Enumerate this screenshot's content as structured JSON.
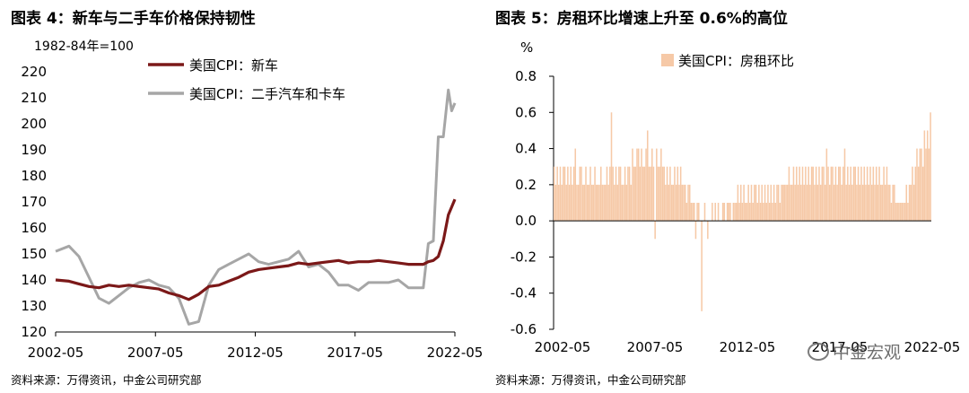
{
  "left": {
    "title": "图表 4：新车与二手车价格保持韧性",
    "source": "资料来源：万得资讯，中金公司研究部"
  },
  "right": {
    "title": "图表 5：房租环比增速上升至 0.6%的高位",
    "source": "资料来源：万得资讯，中金公司研究部"
  },
  "watermark": "中金宏观",
  "chart_data": [
    {
      "type": "line",
      "unit_label": "1982-84年=100",
      "xlabel": "",
      "ylabel": "",
      "x_ticks": [
        "2002-05",
        "2007-05",
        "2012-05",
        "2017-05",
        "2022-05"
      ],
      "ylim": [
        120,
        220
      ],
      "y_ticks": [
        120,
        130,
        140,
        150,
        160,
        170,
        180,
        190,
        200,
        210,
        220
      ],
      "legend_position": "top-center",
      "colors": {
        "new": "#7B1818",
        "used": "#A6A6A6"
      },
      "x": [
        2002.33,
        2003,
        2003.5,
        2004,
        2004.5,
        2005,
        2005.5,
        2006,
        2006.5,
        2007,
        2007.5,
        2008,
        2008.5,
        2009,
        2009.5,
        2010,
        2010.5,
        2011,
        2011.5,
        2012,
        2012.5,
        2013,
        2013.5,
        2014,
        2014.5,
        2015,
        2015.5,
        2016,
        2016.5,
        2017,
        2017.5,
        2018,
        2018.5,
        2019,
        2019.5,
        2020,
        2020.5,
        2020.75,
        2021,
        2021.25,
        2021.5,
        2021.75,
        2022,
        2022.17,
        2022.33
      ],
      "series": [
        {
          "name": "美国CPI：新车",
          "values": [
            140,
            139.5,
            138.5,
            137.5,
            137,
            138,
            137.5,
            138,
            137.5,
            137,
            136.5,
            135,
            134,
            132.5,
            134.5,
            137.5,
            138,
            139.5,
            141,
            143,
            144,
            144.5,
            145,
            145.5,
            146.5,
            146,
            146.5,
            147,
            147.5,
            146.5,
            147,
            147,
            147.5,
            147,
            146.5,
            146,
            146,
            146,
            147,
            147.5,
            149,
            155,
            165,
            168,
            171
          ]
        },
        {
          "name": "美国CPI：二手汽车和卡车",
          "values": [
            151,
            153,
            149,
            141,
            133,
            131,
            134,
            137,
            139,
            140,
            138,
            137,
            133,
            123,
            124,
            138,
            144,
            146,
            148,
            150,
            147,
            146,
            147,
            148,
            151,
            145,
            146,
            143,
            138,
            138,
            136,
            139,
            139,
            139,
            140,
            137,
            137,
            137,
            154,
            155,
            195,
            195,
            213,
            205,
            208
          ]
        }
      ]
    },
    {
      "type": "bar",
      "unit_label": "%",
      "xlabel": "",
      "ylabel": "",
      "x_ticks": [
        "2002-05",
        "2007-05",
        "2012-05",
        "2017-05",
        "2022-05"
      ],
      "ylim": [
        -0.6,
        0.8
      ],
      "y_ticks": [
        -0.6,
        -0.4,
        -0.2,
        0.0,
        0.2,
        0.4,
        0.6,
        0.8
      ],
      "legend_position": "top-center",
      "colors": {
        "bar": "#F6C9A7"
      },
      "start": "2002-01",
      "series": [
        {
          "name": "美国CPI：房租环比",
          "values": [
            0.3,
            0.2,
            0.3,
            0.2,
            0.3,
            0.2,
            0.3,
            0.3,
            0.2,
            0.3,
            0.2,
            0.3,
            0.2,
            0.3,
            0.4,
            0.2,
            0.2,
            0.3,
            0.3,
            0.2,
            0.2,
            0.3,
            0.2,
            0.2,
            0.3,
            0.2,
            0.2,
            0.3,
            0.2,
            0.2,
            0.2,
            0.3,
            0.2,
            0.2,
            0.2,
            0.3,
            0.2,
            0.3,
            0.6,
            0.3,
            0.2,
            0.3,
            0.2,
            0.3,
            0.3,
            0.2,
            0.2,
            0.3,
            0.2,
            0.3,
            0.3,
            0.2,
            0.4,
            0.3,
            0.3,
            0.4,
            0.4,
            0.3,
            0.4,
            0.3,
            0.3,
            0.4,
            0.5,
            0.3,
            0.3,
            0.4,
            0.3,
            -0.1,
            0.4,
            0.3,
            0.3,
            0.4,
            0.3,
            0.3,
            0.2,
            0.3,
            0.2,
            0.3,
            0.2,
            0.2,
            0.3,
            0.2,
            0.3,
            0.2,
            0.3,
            0.2,
            0.2,
            0.2,
            0.1,
            0.2,
            0.2,
            0.1,
            0.1,
            0.1,
            -0.1,
            0.1,
            0.1,
            0.0,
            -0.5,
            0.0,
            0.1,
            0.0,
            -0.1,
            0.0,
            0.0,
            0.1,
            0.0,
            0.1,
            0.0,
            0.1,
            0.0,
            0.0,
            0.1,
            0.1,
            0.0,
            0.1,
            0.1,
            0.1,
            0.0,
            0.1,
            0.1,
            0.1,
            0.2,
            0.1,
            0.2,
            0.1,
            0.2,
            0.1,
            0.1,
            0.2,
            0.1,
            0.2,
            0.1,
            0.2,
            0.2,
            0.1,
            0.2,
            0.1,
            0.2,
            0.1,
            0.2,
            0.1,
            0.2,
            0.1,
            0.2,
            0.1,
            0.2,
            0.1,
            0.2,
            0.2,
            0.1,
            0.2,
            0.2,
            0.2,
            0.2,
            0.2,
            0.3,
            0.2,
            0.2,
            0.3,
            0.2,
            0.3,
            0.2,
            0.3,
            0.2,
            0.3,
            0.2,
            0.3,
            0.2,
            0.3,
            0.2,
            0.3,
            0.3,
            0.2,
            0.3,
            0.2,
            0.3,
            0.2,
            0.3,
            0.3,
            0.2,
            0.4,
            0.3,
            0.2,
            0.3,
            0.3,
            0.2,
            0.3,
            0.2,
            0.3,
            0.3,
            0.2,
            0.3,
            0.4,
            0.2,
            0.3,
            0.2,
            0.3,
            0.2,
            0.3,
            0.3,
            0.2,
            0.3,
            0.2,
            0.3,
            0.2,
            0.3,
            0.2,
            0.3,
            0.2,
            0.3,
            0.2,
            0.3,
            0.2,
            0.3,
            0.2,
            0.3,
            0.2,
            0.2,
            0.3,
            0.2,
            0.3,
            0.2,
            0.2,
            0.1,
            0.2,
            0.2,
            0.1,
            0.1,
            0.1,
            0.1,
            0.1,
            0.1,
            0.1,
            0.2,
            0.1,
            0.2,
            0.2,
            0.3,
            0.2,
            0.3,
            0.4,
            0.3,
            0.4,
            0.4,
            0.3,
            0.5,
            0.4,
            0.5,
            0.4,
            0.6
          ]
        }
      ]
    }
  ]
}
